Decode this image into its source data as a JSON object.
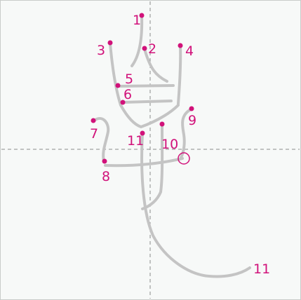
{
  "colors": {
    "background": "#f7f9f8",
    "border": "#c9ccca",
    "guide": "#8a8a8a",
    "stroke": "#c4c4c4",
    "marker": "#d1127a"
  },
  "strokes": [
    {
      "id": "s1",
      "label": "1",
      "order": 1
    },
    {
      "id": "s2",
      "label": "2",
      "order": 2
    },
    {
      "id": "s3",
      "label": "3",
      "order": 3
    },
    {
      "id": "s4",
      "label": "4",
      "order": 4
    },
    {
      "id": "s5",
      "label": "5",
      "order": 5
    },
    {
      "id": "s6",
      "label": "6",
      "order": 6
    },
    {
      "id": "s7",
      "label": "7",
      "order": 7
    },
    {
      "id": "s8",
      "label": "8",
      "order": 8
    },
    {
      "id": "s9",
      "label": "9",
      "order": 9
    },
    {
      "id": "s10",
      "label": "10",
      "order": 10
    },
    {
      "id": "s11",
      "label": "11",
      "order": 11
    }
  ],
  "end_labels": [
    {
      "id": "s11-end",
      "label": "11"
    }
  ]
}
